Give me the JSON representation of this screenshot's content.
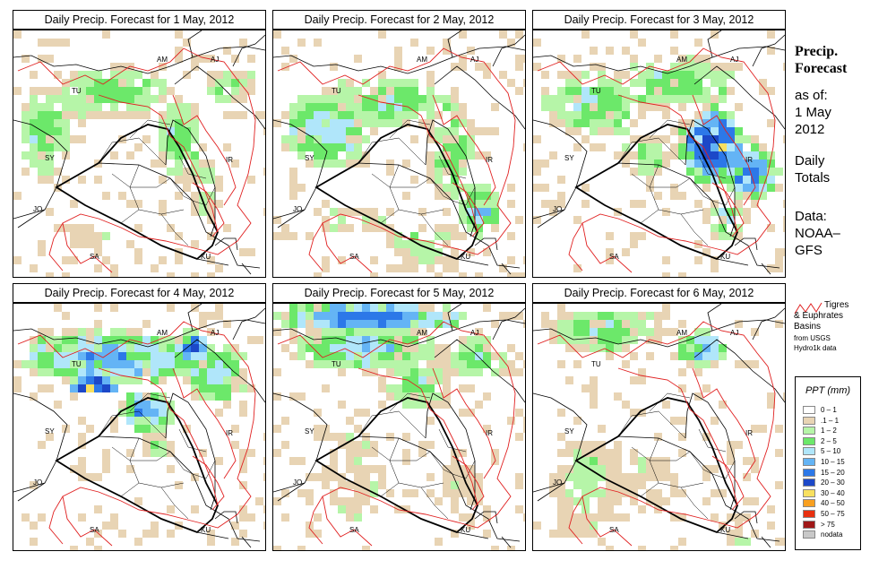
{
  "panels": [
    {
      "title": "Daily Precip. Forecast for  1 May, 2012",
      "day": 1
    },
    {
      "title": "Daily Precip. Forecast for  2 May, 2012",
      "day": 2
    },
    {
      "title": "Daily Precip. Forecast for  3 May, 2012",
      "day": 3
    },
    {
      "title": "Daily Precip. Forecast for  4 May, 2012",
      "day": 4
    },
    {
      "title": "Daily Precip. Forecast for  5 May, 2012",
      "day": 5
    },
    {
      "title": "Daily Precip. Forecast for  6 May, 2012",
      "day": 6
    }
  ],
  "country_labels": [
    "AM",
    "AJ",
    "TU",
    "SY",
    "IR",
    "JO",
    "SA",
    "KU"
  ],
  "sidebar": {
    "title_line1": "Precip.",
    "title_line2": "Forecast",
    "asof_line1": "as of:",
    "asof_line2": "1 May",
    "asof_line3": "2012",
    "daily_line1": "Daily",
    "daily_line2": "Totals",
    "data_line1": "Data:",
    "data_line2": "NOAA–",
    "data_line3": "GFS"
  },
  "basin_key": {
    "line1": "Tigres",
    "line2": "& Euphrates",
    "line3": "Basins",
    "line4": "from USGS",
    "line5": "Hydro1k data",
    "line_color": "#e02020"
  },
  "legend": {
    "title": "PPT (mm)",
    "items": [
      {
        "label": "0 – 1",
        "color": "#ffffff"
      },
      {
        "label": ".1 – 1",
        "color": "#e8d4b4"
      },
      {
        "label": "1 – 2",
        "color": "#b6f5a8"
      },
      {
        "label": "2 – 5",
        "color": "#6ce86a"
      },
      {
        "label": "5 – 10",
        "color": "#b0e6fa"
      },
      {
        "label": "10 – 15",
        "color": "#64b4f5"
      },
      {
        "label": "15 – 20",
        "color": "#2c78e8"
      },
      {
        "label": "20 – 30",
        "color": "#1c48c8"
      },
      {
        "label": "30 – 40",
        "color": "#f8e060"
      },
      {
        "label": "40 – 50",
        "color": "#f8a020"
      },
      {
        "label": "50 – 75",
        "color": "#e83010"
      },
      {
        "label": "> 75",
        "color": "#a01818"
      },
      {
        "label": "nodata",
        "color": "#c8c8c8"
      }
    ]
  }
}
